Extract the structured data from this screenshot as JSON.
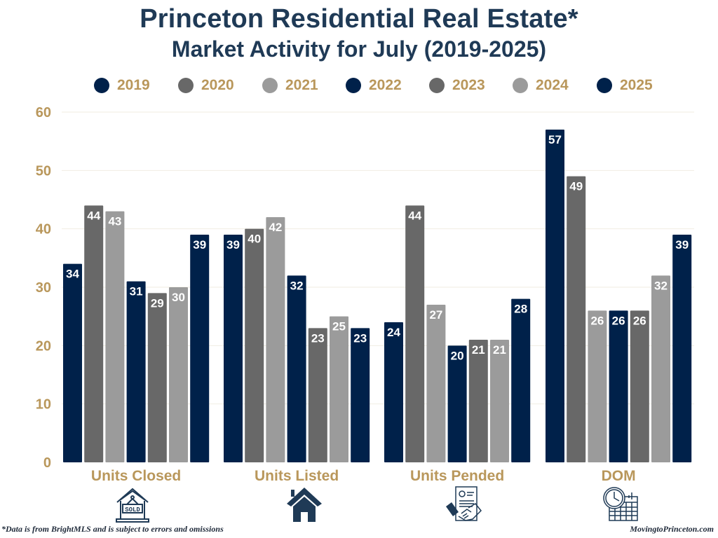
{
  "title": "Princeton Residential Real Estate*",
  "subtitle": "Market Activity for July (2019-2025)",
  "footnote": "*Data is from BrightMLS and is subject to errors and omissions",
  "site": "MovingtoPrinceton.com",
  "colors": {
    "title": "#1f3a56",
    "accent_gold": "#b9975b",
    "navy": "#00214a",
    "dark_gray": "#686868",
    "light_gray": "#9b9b9b",
    "gridline": "#f1ede2"
  },
  "icons": [
    {
      "category": "Units Closed",
      "icon": "sold-house-icon"
    },
    {
      "category": "Units Listed",
      "icon": "house-icon"
    },
    {
      "category": "Units Pended",
      "icon": "contract-handshake-icon"
    },
    {
      "category": "DOM",
      "icon": "clock-calendar-icon"
    }
  ],
  "chart_data": {
    "type": "bar",
    "title": "Princeton Residential Real Estate* Market Activity for July (2019-2025)",
    "xlabel": "",
    "ylabel": "",
    "ylim": [
      0,
      60
    ],
    "yticks": [
      0,
      10,
      20,
      30,
      40,
      50,
      60
    ],
    "grid": true,
    "legend_position": "top",
    "categories": [
      "Units Closed",
      "Units Listed",
      "Units Pended",
      "DOM"
    ],
    "series": [
      {
        "name": "2019",
        "color": "#00214a",
        "values": [
          34,
          39,
          24,
          57
        ]
      },
      {
        "name": "2020",
        "color": "#686868",
        "values": [
          44,
          40,
          44,
          49
        ]
      },
      {
        "name": "2021",
        "color": "#9b9b9b",
        "values": [
          43,
          42,
          27,
          26
        ]
      },
      {
        "name": "2022",
        "color": "#00214a",
        "values": [
          31,
          32,
          20,
          26
        ]
      },
      {
        "name": "2023",
        "color": "#686868",
        "values": [
          29,
          23,
          21,
          26
        ]
      },
      {
        "name": "2024",
        "color": "#9b9b9b",
        "values": [
          30,
          25,
          21,
          32
        ]
      },
      {
        "name": "2025",
        "color": "#00214a",
        "values": [
          39,
          23,
          28,
          39
        ]
      }
    ],
    "data_labels": true
  }
}
